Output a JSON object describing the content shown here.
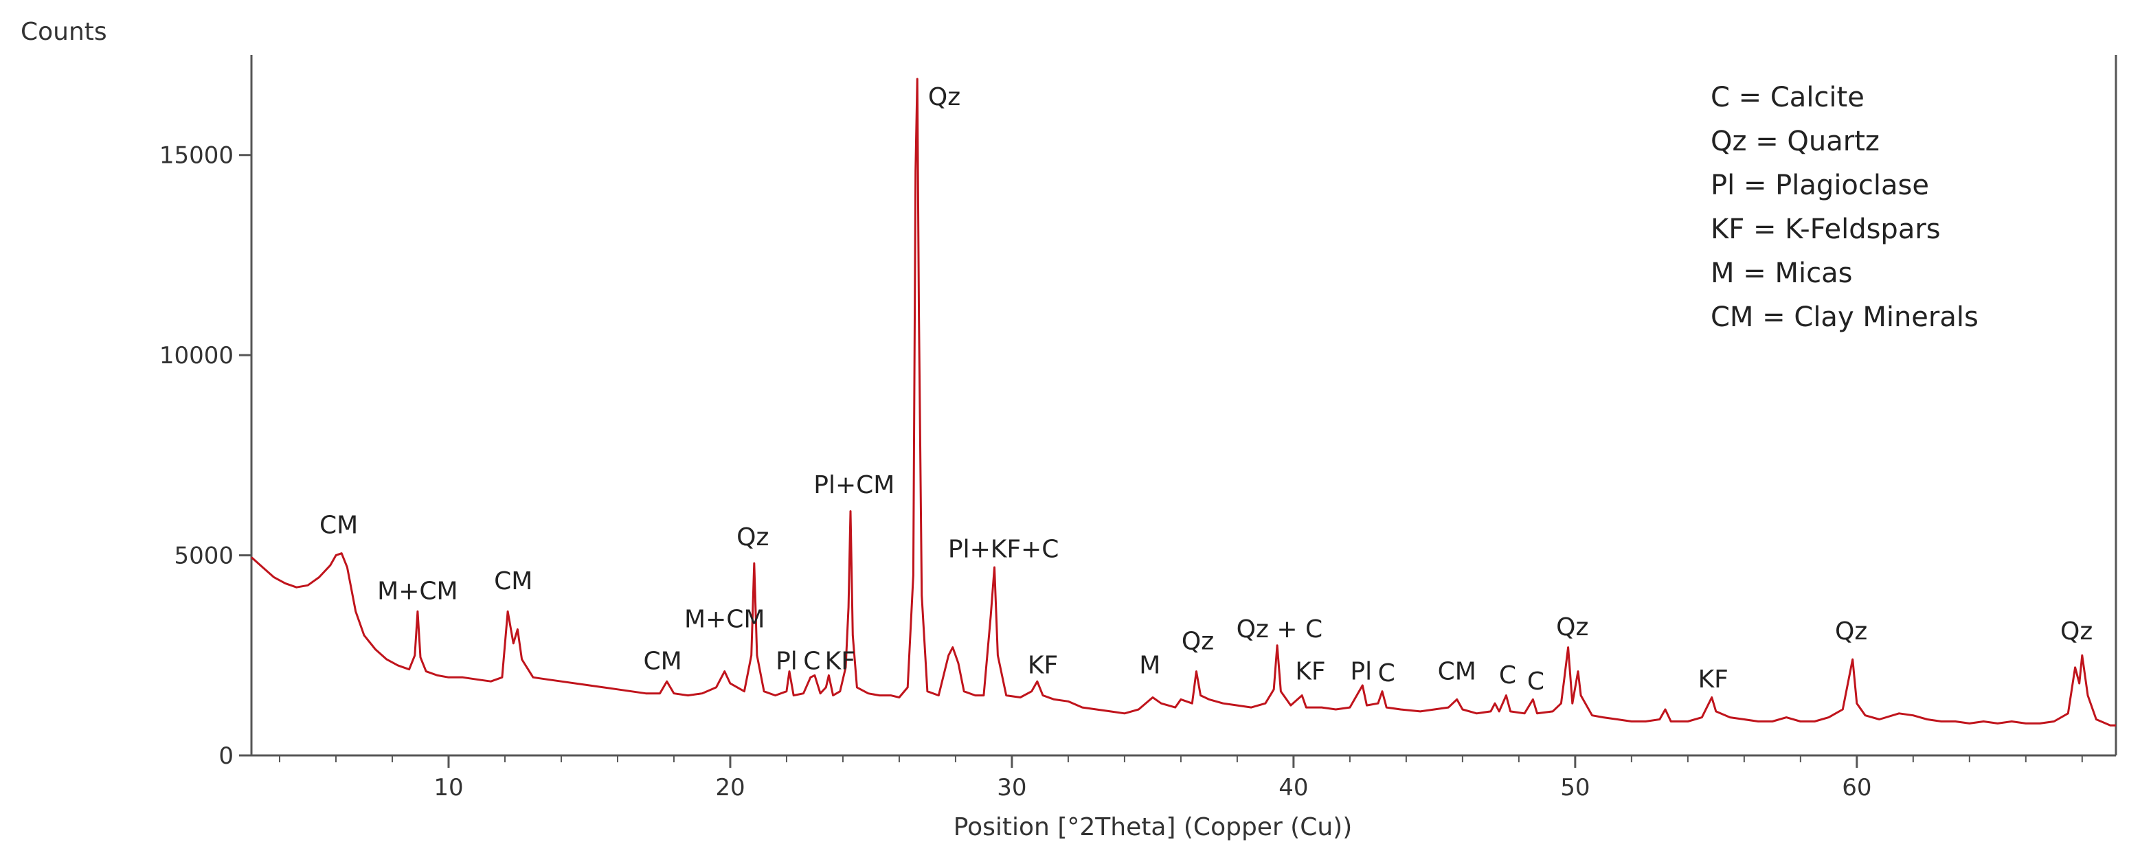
{
  "chart_data": {
    "type": "line",
    "ylabel": "Counts",
    "xlabel": "Position [°2Theta] (Copper (Cu))",
    "xlim": [
      3,
      69.2
    ],
    "ylim": [
      0,
      17500
    ],
    "x_ticks": [
      10,
      20,
      30,
      40,
      50,
      60
    ],
    "y_ticks": [
      0,
      5000,
      10000,
      15000
    ],
    "grid": false,
    "legend_position": "top-right",
    "line_color": "#c0141c",
    "legend": [
      "C = Calcite",
      "Qz = Quartz",
      "Pl = Plagioclase",
      "KF = K-Feldspars",
      "M = Micas",
      "CM = Clay Minerals"
    ],
    "series": [
      {
        "points": [
          [
            3.0,
            4950
          ],
          [
            3.4,
            4700
          ],
          [
            3.8,
            4450
          ],
          [
            4.2,
            4300
          ],
          [
            4.6,
            4200
          ],
          [
            5.0,
            4250
          ],
          [
            5.4,
            4450
          ],
          [
            5.8,
            4750
          ],
          [
            6.0,
            5000
          ],
          [
            6.2,
            5050
          ],
          [
            6.4,
            4700
          ],
          [
            6.7,
            3600
          ],
          [
            7.0,
            3000
          ],
          [
            7.4,
            2650
          ],
          [
            7.8,
            2400
          ],
          [
            8.2,
            2250
          ],
          [
            8.6,
            2150
          ],
          [
            8.8,
            2500
          ],
          [
            8.9,
            3600
          ],
          [
            9.0,
            2450
          ],
          [
            9.2,
            2100
          ],
          [
            9.6,
            2000
          ],
          [
            10.0,
            1950
          ],
          [
            10.5,
            1950
          ],
          [
            11.0,
            1900
          ],
          [
            11.5,
            1850
          ],
          [
            11.9,
            1950
          ],
          [
            12.1,
            3600
          ],
          [
            12.3,
            2800
          ],
          [
            12.45,
            3150
          ],
          [
            12.6,
            2400
          ],
          [
            13.0,
            1950
          ],
          [
            13.5,
            1900
          ],
          [
            14.0,
            1850
          ],
          [
            15.0,
            1750
          ],
          [
            16.0,
            1650
          ],
          [
            17.0,
            1550
          ],
          [
            17.5,
            1550
          ],
          [
            17.75,
            1850
          ],
          [
            18.0,
            1550
          ],
          [
            18.5,
            1500
          ],
          [
            19.0,
            1550
          ],
          [
            19.5,
            1700
          ],
          [
            19.8,
            2100
          ],
          [
            20.0,
            1800
          ],
          [
            20.5,
            1600
          ],
          [
            20.75,
            2500
          ],
          [
            20.85,
            4800
          ],
          [
            20.95,
            2500
          ],
          [
            21.2,
            1600
          ],
          [
            21.6,
            1500
          ],
          [
            22.0,
            1600
          ],
          [
            22.1,
            2100
          ],
          [
            22.25,
            1500
          ],
          [
            22.6,
            1550
          ],
          [
            22.85,
            1950
          ],
          [
            23.0,
            2000
          ],
          [
            23.2,
            1550
          ],
          [
            23.4,
            1700
          ],
          [
            23.5,
            2000
          ],
          [
            23.65,
            1500
          ],
          [
            23.9,
            1600
          ],
          [
            24.1,
            2200
          ],
          [
            24.2,
            3700
          ],
          [
            24.27,
            6100
          ],
          [
            24.35,
            3000
          ],
          [
            24.5,
            1700
          ],
          [
            24.9,
            1550
          ],
          [
            25.3,
            1500
          ],
          [
            25.7,
            1500
          ],
          [
            26.0,
            1450
          ],
          [
            26.3,
            1700
          ],
          [
            26.5,
            4500
          ],
          [
            26.58,
            14600
          ],
          [
            26.64,
            16900
          ],
          [
            26.7,
            11000
          ],
          [
            26.8,
            4000
          ],
          [
            27.0,
            1600
          ],
          [
            27.4,
            1500
          ],
          [
            27.75,
            2500
          ],
          [
            27.9,
            2700
          ],
          [
            28.1,
            2300
          ],
          [
            28.3,
            1600
          ],
          [
            28.7,
            1500
          ],
          [
            29.0,
            1500
          ],
          [
            29.25,
            3500
          ],
          [
            29.38,
            4700
          ],
          [
            29.5,
            2500
          ],
          [
            29.8,
            1500
          ],
          [
            30.3,
            1450
          ],
          [
            30.7,
            1600
          ],
          [
            30.9,
            1850
          ],
          [
            31.1,
            1500
          ],
          [
            31.5,
            1400
          ],
          [
            32.0,
            1350
          ],
          [
            32.5,
            1200
          ],
          [
            33.0,
            1150
          ],
          [
            33.5,
            1100
          ],
          [
            34.0,
            1050
          ],
          [
            34.5,
            1150
          ],
          [
            35.0,
            1450
          ],
          [
            35.3,
            1300
          ],
          [
            35.8,
            1200
          ],
          [
            36.0,
            1400
          ],
          [
            36.4,
            1300
          ],
          [
            36.55,
            2100
          ],
          [
            36.7,
            1500
          ],
          [
            37.0,
            1400
          ],
          [
            37.5,
            1300
          ],
          [
            38.0,
            1250
          ],
          [
            38.5,
            1200
          ],
          [
            39.0,
            1300
          ],
          [
            39.3,
            1650
          ],
          [
            39.42,
            2750
          ],
          [
            39.55,
            1600
          ],
          [
            39.9,
            1250
          ],
          [
            40.3,
            1500
          ],
          [
            40.45,
            1200
          ],
          [
            41.0,
            1200
          ],
          [
            41.5,
            1150
          ],
          [
            42.0,
            1200
          ],
          [
            42.45,
            1750
          ],
          [
            42.6,
            1250
          ],
          [
            43.0,
            1300
          ],
          [
            43.15,
            1600
          ],
          [
            43.3,
            1200
          ],
          [
            43.8,
            1150
          ],
          [
            44.5,
            1100
          ],
          [
            45.0,
            1150
          ],
          [
            45.5,
            1200
          ],
          [
            45.8,
            1400
          ],
          [
            46.0,
            1150
          ],
          [
            46.5,
            1050
          ],
          [
            47.0,
            1100
          ],
          [
            47.15,
            1300
          ],
          [
            47.3,
            1100
          ],
          [
            47.55,
            1500
          ],
          [
            47.7,
            1100
          ],
          [
            48.2,
            1050
          ],
          [
            48.5,
            1400
          ],
          [
            48.65,
            1050
          ],
          [
            49.2,
            1100
          ],
          [
            49.5,
            1300
          ],
          [
            49.6,
            1850
          ],
          [
            49.75,
            2700
          ],
          [
            49.9,
            1300
          ],
          [
            50.1,
            2100
          ],
          [
            50.2,
            1500
          ],
          [
            50.6,
            1000
          ],
          [
            51.0,
            950
          ],
          [
            51.5,
            900
          ],
          [
            52.0,
            850
          ],
          [
            52.5,
            850
          ],
          [
            53.0,
            900
          ],
          [
            53.2,
            1150
          ],
          [
            53.4,
            850
          ],
          [
            54.0,
            850
          ],
          [
            54.5,
            950
          ],
          [
            54.85,
            1450
          ],
          [
            55.0,
            1100
          ],
          [
            55.5,
            950
          ],
          [
            56.0,
            900
          ],
          [
            56.5,
            850
          ],
          [
            57.0,
            850
          ],
          [
            57.5,
            950
          ],
          [
            58.0,
            850
          ],
          [
            58.5,
            850
          ],
          [
            59.0,
            950
          ],
          [
            59.5,
            1150
          ],
          [
            59.85,
            2400
          ],
          [
            60.0,
            1300
          ],
          [
            60.3,
            1000
          ],
          [
            60.8,
            900
          ],
          [
            61.5,
            1050
          ],
          [
            62.0,
            1000
          ],
          [
            62.5,
            900
          ],
          [
            63.0,
            850
          ],
          [
            63.5,
            850
          ],
          [
            64.0,
            800
          ],
          [
            64.5,
            850
          ],
          [
            65.0,
            800
          ],
          [
            65.5,
            850
          ],
          [
            66.0,
            800
          ],
          [
            66.5,
            800
          ],
          [
            67.0,
            850
          ],
          [
            67.5,
            1050
          ],
          [
            67.75,
            2200
          ],
          [
            67.9,
            1800
          ],
          [
            68.0,
            2500
          ],
          [
            68.2,
            1500
          ],
          [
            68.5,
            900
          ],
          [
            69.0,
            750
          ],
          [
            69.2,
            750
          ]
        ]
      }
    ],
    "peak_labels": [
      {
        "text": "CM",
        "x": 6.1,
        "y": 5550
      },
      {
        "text": "M+CM",
        "x": 8.9,
        "y": 3900
      },
      {
        "text": "CM",
        "x": 12.3,
        "y": 4150
      },
      {
        "text": "CM",
        "x": 17.6,
        "y": 2150
      },
      {
        "text": "M+CM",
        "x": 19.8,
        "y": 3200
      },
      {
        "text": "Qz",
        "x": 20.8,
        "y": 5250
      },
      {
        "text": "Pl",
        "x": 22.0,
        "y": 2150
      },
      {
        "text": "C",
        "x": 22.9,
        "y": 2150
      },
      {
        "text": "KF",
        "x": 23.9,
        "y": 2150
      },
      {
        "text": "Pl+CM",
        "x": 24.4,
        "y": 6550
      },
      {
        "text": "Qz",
        "x": 27.6,
        "y": 16250
      },
      {
        "text": "Pl+KF+C",
        "x": 29.7,
        "y": 4950
      },
      {
        "text": "KF",
        "x": 31.1,
        "y": 2050
      },
      {
        "text": "M",
        "x": 34.9,
        "y": 2050
      },
      {
        "text": "Qz",
        "x": 36.6,
        "y": 2650
      },
      {
        "text": "Qz + C",
        "x": 39.5,
        "y": 2950
      },
      {
        "text": "KF",
        "x": 40.6,
        "y": 1900
      },
      {
        "text": "Pl",
        "x": 42.4,
        "y": 1900
      },
      {
        "text": "C",
        "x": 43.3,
        "y": 1850
      },
      {
        "text": "CM",
        "x": 45.8,
        "y": 1900
      },
      {
        "text": "C",
        "x": 47.6,
        "y": 1800
      },
      {
        "text": "C",
        "x": 48.6,
        "y": 1650
      },
      {
        "text": "Qz",
        "x": 49.9,
        "y": 3000
      },
      {
        "text": "KF",
        "x": 54.9,
        "y": 1700
      },
      {
        "text": "Qz",
        "x": 59.8,
        "y": 2900
      },
      {
        "text": "Qz",
        "x": 67.8,
        "y": 2900
      }
    ]
  }
}
